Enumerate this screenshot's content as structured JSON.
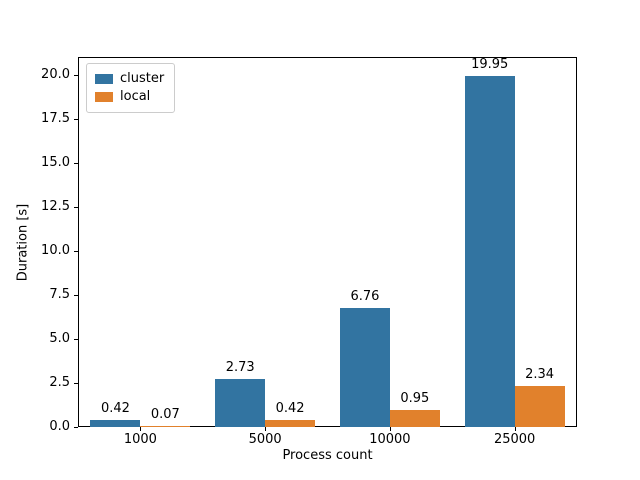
{
  "chart_data": {
    "type": "bar",
    "title": "",
    "xlabel": "Process count",
    "ylabel": "Duration [s]",
    "categories": [
      "1000",
      "5000",
      "10000",
      "25000"
    ],
    "series": [
      {
        "name": "cluster",
        "color": "#3274a1",
        "values": [
          0.42,
          2.73,
          6.76,
          19.95
        ]
      },
      {
        "name": "local",
        "color": "#e1812c",
        "values": [
          0.07,
          0.42,
          0.95,
          2.34
        ]
      }
    ],
    "value_labels": [
      "0.42",
      "0.07",
      "2.73",
      "0.42",
      "6.76",
      "0.95",
      "19.95",
      "2.34"
    ],
    "ytick_labels": [
      "0.0",
      "2.5",
      "5.0",
      "7.5",
      "10.0",
      "12.5",
      "15.0",
      "17.5",
      "20.0"
    ],
    "ylim": [
      0,
      21
    ],
    "grid": "off",
    "legend_position": "upper left",
    "frame_color": "#000000",
    "legend_border_color": "#cccccc"
  }
}
